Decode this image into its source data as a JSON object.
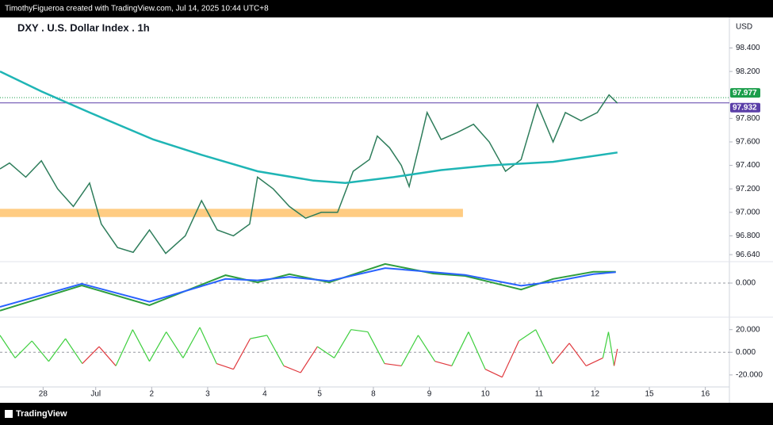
{
  "header": {
    "credit": "TimothyFigueroa created with TradingView.com, Jul 14, 2025 10:44 UTC+8"
  },
  "footer": {
    "brand": "TradingView"
  },
  "chart_data": {
    "type": "line",
    "title": "DXY . U.S. Dollar Index . 1h",
    "currency": "USD",
    "xlim": [
      -0.77,
      12.26
    ],
    "xticks": [
      {
        "value": 0,
        "label": "28"
      },
      {
        "value": 0.94,
        "label": "Jul"
      },
      {
        "value": 1.94,
        "label": "2"
      },
      {
        "value": 2.94,
        "label": "3"
      },
      {
        "value": 3.96,
        "label": "4"
      },
      {
        "value": 4.94,
        "label": "5"
      },
      {
        "value": 5.9,
        "label": "8"
      },
      {
        "value": 6.9,
        "label": "9"
      },
      {
        "value": 7.9,
        "label": "10"
      },
      {
        "value": 8.86,
        "label": "11"
      },
      {
        "value": 9.86,
        "label": "12"
      },
      {
        "value": 10.83,
        "label": "15"
      },
      {
        "value": 11.83,
        "label": "16"
      }
    ],
    "ylim": [
      96.58,
      98.66
    ],
    "yticks": [
      {
        "value": 98.4,
        "label": "98.400"
      },
      {
        "value": 98.2,
        "label": "98.200"
      },
      {
        "value": 97.8,
        "label": "97.800"
      },
      {
        "value": 97.6,
        "label": "97.600"
      },
      {
        "value": 97.4,
        "label": "97.400"
      },
      {
        "value": 97.2,
        "label": "97.200"
      },
      {
        "value": 97.0,
        "label": "97.000"
      },
      {
        "value": 96.8,
        "label": "96.800"
      },
      {
        "value": 96.64,
        "label": "96.640"
      }
    ],
    "zone": [
      96.96,
      97.03
    ],
    "price_lines": [
      {
        "value": 97.977,
        "color": "#1b9e4b"
      },
      {
        "value": 97.932,
        "color": "#5b3fa8"
      }
    ],
    "series": [
      {
        "color": "#2e7d5b",
        "x": [
          -0.77,
          -0.6,
          -0.31,
          -0.03,
          0.26,
          0.54,
          0.83,
          1.04,
          1.33,
          1.61,
          1.9,
          2.19,
          2.54,
          2.83,
          3.11,
          3.4,
          3.69,
          3.83,
          4.11,
          4.4,
          4.69,
          4.97,
          5.26,
          5.54,
          5.83,
          5.97,
          6.19,
          6.4,
          6.54,
          6.76,
          6.86,
          7.11,
          7.4,
          7.69,
          7.97,
          8.26,
          8.54,
          8.83,
          9.11,
          9.33,
          9.61,
          9.9,
          10.11,
          10.26
        ],
        "values": [
          97.37,
          97.42,
          97.3,
          97.44,
          97.2,
          97.05,
          97.25,
          96.9,
          96.7,
          96.66,
          96.85,
          96.65,
          96.8,
          97.1,
          96.85,
          96.8,
          96.9,
          97.3,
          97.2,
          97.05,
          96.95,
          97.0,
          97.0,
          97.35,
          97.45,
          97.65,
          97.55,
          97.4,
          97.22,
          97.65,
          97.85,
          97.62,
          97.68,
          97.75,
          97.6,
          97.35,
          97.45,
          97.92,
          97.6,
          97.85,
          97.78,
          97.85,
          98.0,
          97.93
        ]
      },
      {
        "color": "#1fb5b5",
        "x": [
          -0.77,
          -0.03,
          0.83,
          1.97,
          2.83,
          3.83,
          4.83,
          5.4,
          6.26,
          7.11,
          7.97,
          9.11,
          10.26
        ],
        "values": [
          98.2,
          98.03,
          97.85,
          97.62,
          97.49,
          97.35,
          97.27,
          97.25,
          97.3,
          97.36,
          97.4,
          97.43,
          97.51
        ]
      }
    ],
    "macd": {
      "ylim": [
        -0.1,
        0.1
      ],
      "yticks": [
        {
          "value": 0,
          "label": "0.000"
        }
      ],
      "series": [
        {
          "color": "#2e9e3e",
          "x": [
            -0.77,
            0.69,
            1.9,
            3.26,
            3.83,
            4.4,
            5.11,
            6.11,
            6.97,
            7.54,
            8.54,
            9.11,
            9.83,
            10.23
          ],
          "values": [
            -0.081,
            -0.007,
            -0.065,
            0.023,
            0.002,
            0.026,
            0.002,
            0.056,
            0.028,
            0.021,
            -0.019,
            0.012,
            0.033,
            0.033
          ]
        },
        {
          "color": "#2962ff",
          "x": [
            -0.77,
            0.69,
            1.9,
            3.26,
            3.83,
            4.4,
            5.11,
            6.11,
            6.97,
            7.54,
            8.54,
            9.11,
            9.83,
            10.23
          ],
          "values": [
            -0.07,
            -0.002,
            -0.055,
            0.012,
            0.008,
            0.018,
            0.006,
            0.044,
            0.032,
            0.024,
            -0.008,
            0.004,
            0.026,
            0.032
          ]
        }
      ]
    },
    "oscillator": {
      "ylim": [
        -32,
        31
      ],
      "yticks": [
        {
          "value": 20,
          "label": "20.000"
        },
        {
          "value": 0,
          "label": "0.000"
        },
        {
          "value": -20,
          "label": "-20.000"
        }
      ],
      "up_color": "#3ecf3e",
      "down_color": "#e0393e",
      "x": [
        -0.77,
        -0.5,
        -0.2,
        0.1,
        0.4,
        0.7,
        1.0,
        1.3,
        1.6,
        1.9,
        2.2,
        2.5,
        2.8,
        3.1,
        3.4,
        3.7,
        4.0,
        4.3,
        4.6,
        4.9,
        5.2,
        5.5,
        5.8,
        6.1,
        6.4,
        6.7,
        7.0,
        7.3,
        7.6,
        7.9,
        8.2,
        8.5,
        8.8,
        9.1,
        9.4,
        9.7,
        10.0,
        10.1,
        10.2,
        10.26
      ],
      "values": [
        15,
        -5,
        10,
        -8,
        12,
        -10,
        5,
        -12,
        20,
        -8,
        18,
        -5,
        22,
        -10,
        -15,
        12,
        15,
        -12,
        -18,
        5,
        -5,
        20,
        18,
        -10,
        -12,
        15,
        -8,
        -12,
        18,
        -15,
        -22,
        10,
        20,
        -10,
        8,
        -12,
        -5,
        18,
        -12,
        3
      ]
    }
  }
}
